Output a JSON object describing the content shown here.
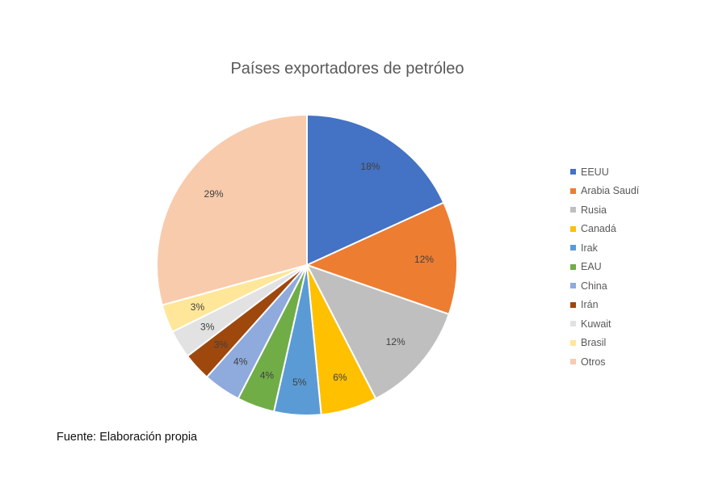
{
  "chart_data": {
    "type": "pie",
    "title": "Países exportadores de petróleo",
    "categories": [
      "EEUU",
      "Arabia Saudí",
      "Rusia",
      "Canadá",
      "Irak",
      "EAU",
      "China",
      "Irán",
      "Kuwait",
      "Brasil",
      "Otros"
    ],
    "values": [
      18,
      12,
      12,
      6,
      5,
      4,
      4,
      3,
      3,
      3,
      29
    ],
    "labels": [
      "18%",
      "12%",
      "12%",
      "6%",
      "5%",
      "4%",
      "4%",
      "3%",
      "3%",
      "3%",
      "29%"
    ],
    "colors": [
      "#4472C4",
      "#ED7D31",
      "#BFBFBF",
      "#FFC000",
      "#5B9BD5",
      "#70AD47",
      "#8FAADC",
      "#9E480E",
      "#E2E2E2",
      "#FFE699",
      "#F8CBAD"
    ],
    "legend_position": "right"
  },
  "source_note": "Fuente: Elaboración propia"
}
